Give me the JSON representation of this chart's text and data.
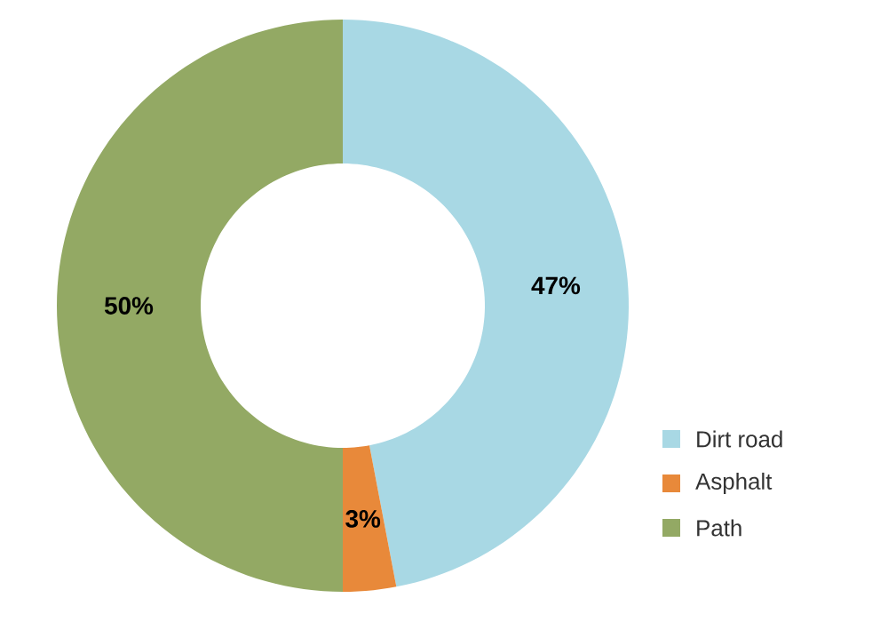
{
  "chart_data": {
    "type": "donut",
    "categories": [
      "Dirt road",
      "Asphalt",
      "Path"
    ],
    "values": [
      47,
      3,
      50
    ],
    "colors": [
      "#a8d8e4",
      "#e8893a",
      "#93a964"
    ],
    "value_labels": [
      "47%",
      "3%",
      "50%"
    ],
    "legend": "right"
  }
}
